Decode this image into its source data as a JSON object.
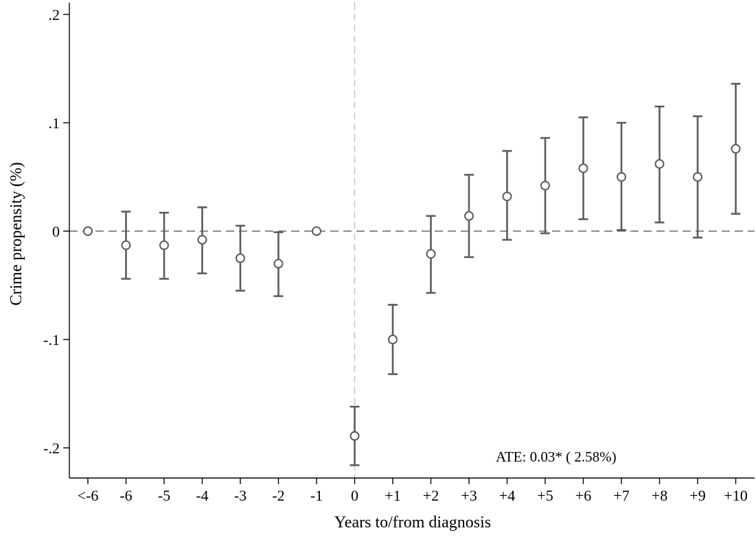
{
  "chart_data": {
    "type": "scatter",
    "xlabel": "Years to/from diagnosis",
    "ylabel": "Crime propensity (%)",
    "categories": [
      "<-6",
      "-6",
      "-5",
      "-4",
      "-3",
      "-2",
      "-1",
      "0",
      "+1",
      "+2",
      "+3",
      "+4",
      "+5",
      "+6",
      "+7",
      "+8",
      "+9",
      "+10"
    ],
    "series": [
      {
        "estimates": [
          0.0,
          -0.013,
          -0.013,
          -0.008,
          -0.025,
          -0.03,
          0.0,
          -0.189,
          -0.1,
          -0.021,
          0.014,
          0.032,
          0.042,
          0.058,
          0.05,
          0.062,
          0.05,
          0.076
        ],
        "ci_lower": [
          null,
          -0.044,
          -0.044,
          -0.039,
          -0.055,
          -0.06,
          null,
          -0.216,
          -0.132,
          -0.057,
          -0.024,
          -0.008,
          -0.002,
          0.011,
          0.001,
          0.008,
          -0.006,
          0.016
        ],
        "ci_upper": [
          null,
          0.018,
          0.017,
          0.022,
          0.005,
          -0.001,
          null,
          -0.162,
          -0.068,
          0.014,
          0.052,
          0.074,
          0.086,
          0.105,
          0.1,
          0.115,
          0.106,
          0.136
        ]
      }
    ],
    "ylim": [
      -0.225,
      0.2
    ],
    "yticks": [
      -0.2,
      -0.1,
      0,
      0.1,
      0.2
    ],
    "ytick_labels": [
      "-.2",
      "-.1",
      "0",
      ".1",
      ".2"
    ],
    "reference_lines": {
      "horizontal_at_y": 0,
      "vertical_at_category": "0"
    },
    "annotation": "ATE:  0.03* ( 2.58%)",
    "grid": false,
    "colors": {
      "markers": "#5b5b5b",
      "error_bars": "#5b5b5b",
      "h_reference": "#666666",
      "v_reference": "#bfbfbf"
    }
  }
}
